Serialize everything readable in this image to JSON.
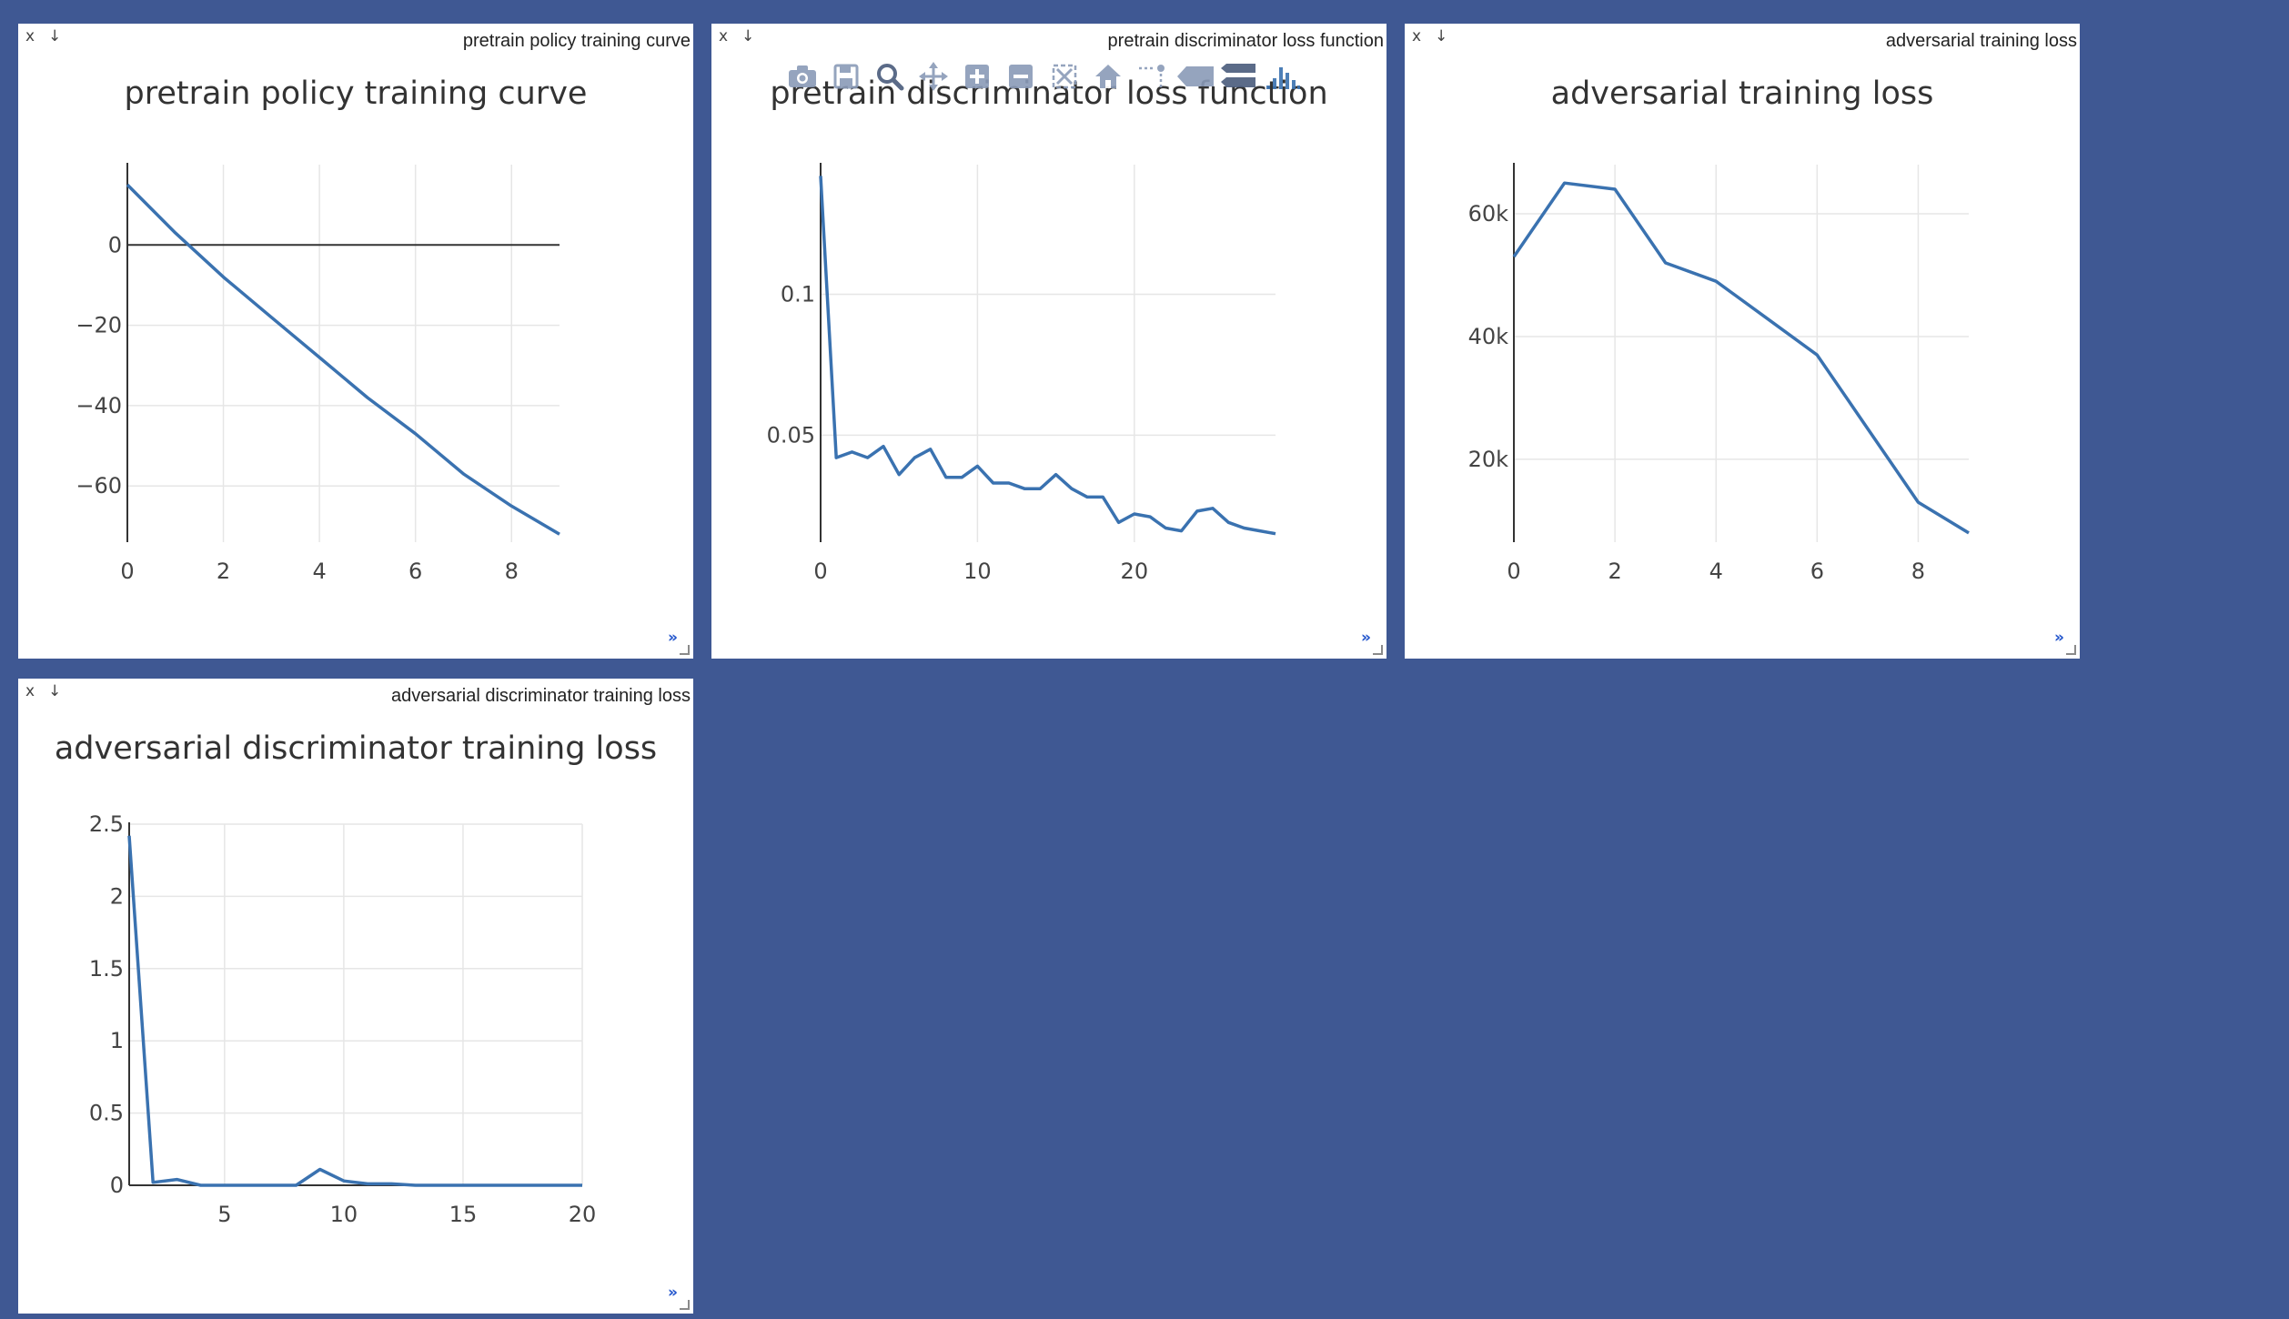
{
  "panes": [
    {
      "id": "policy",
      "window_title": "pretrain policy training curve",
      "close_label": "x",
      "download_label": "↓",
      "expand_label": "»",
      "chart_data": {
        "type": "line",
        "title": "pretrain policy training curve",
        "x": [
          0,
          1,
          2,
          3,
          4,
          5,
          6,
          7,
          8,
          9
        ],
        "y": [
          15,
          3,
          -8,
          -18,
          -28,
          -38,
          -47,
          -57,
          -65,
          -72
        ],
        "xlim": [
          0,
          9
        ],
        "ylim": [
          -74,
          20
        ],
        "xticks": [
          0,
          2,
          4,
          6,
          8
        ],
        "xtick_labels": [
          "0",
          "2",
          "4",
          "6",
          "8"
        ],
        "yticks": [
          0,
          -20,
          -40,
          -60
        ],
        "ytick_labels": [
          "0",
          "−20",
          "−40",
          "−60"
        ],
        "zero_line": true
      }
    },
    {
      "id": "pre-disc",
      "window_title": "pretrain discriminator loss function",
      "close_label": "x",
      "download_label": "↓",
      "expand_label": "»",
      "chart_data": {
        "type": "line",
        "title": "pretrain discriminator loss function",
        "x": [
          0,
          1,
          2,
          3,
          4,
          5,
          6,
          7,
          8,
          9,
          10,
          11,
          12,
          13,
          14,
          15,
          16,
          17,
          18,
          19,
          20,
          21,
          22,
          23,
          24,
          25,
          26,
          27,
          28,
          29
        ],
        "y": [
          0.142,
          0.042,
          0.044,
          0.042,
          0.046,
          0.036,
          0.042,
          0.045,
          0.035,
          0.035,
          0.039,
          0.033,
          0.033,
          0.031,
          0.031,
          0.036,
          0.031,
          0.028,
          0.028,
          0.019,
          0.022,
          0.021,
          0.017,
          0.016,
          0.023,
          0.024,
          0.019,
          0.017,
          0.016,
          0.015
        ],
        "xlim": [
          0,
          29
        ],
        "ylim": [
          0.012,
          0.146
        ],
        "xticks": [
          0,
          10,
          20
        ],
        "xtick_labels": [
          "0",
          "10",
          "20"
        ],
        "yticks": [
          0.05,
          0.1
        ],
        "ytick_labels": [
          "0.05",
          "0.1"
        ],
        "zero_line": false
      }
    },
    {
      "id": "adv",
      "window_title": "adversarial training loss",
      "close_label": "x",
      "download_label": "↓",
      "expand_label": "»",
      "chart_data": {
        "type": "line",
        "title": "adversarial training loss",
        "x": [
          0,
          1,
          2,
          3,
          4,
          5,
          6,
          7,
          8,
          9
        ],
        "y": [
          53000,
          65000,
          64000,
          52000,
          49000,
          43000,
          37000,
          25000,
          13000,
          8000
        ],
        "xlim": [
          0,
          9
        ],
        "ylim": [
          6500,
          68000
        ],
        "xticks": [
          0,
          2,
          4,
          6,
          8
        ],
        "xtick_labels": [
          "0",
          "2",
          "4",
          "6",
          "8"
        ],
        "yticks": [
          20000,
          40000,
          60000
        ],
        "ytick_labels": [
          "20k",
          "40k",
          "60k"
        ],
        "zero_line": false
      }
    },
    {
      "id": "adv-disc",
      "window_title": "adversarial discriminator training loss",
      "close_label": "x",
      "download_label": "↓",
      "expand_label": "»",
      "chart_data": {
        "type": "line",
        "title": "adversarial discriminator training loss",
        "x": [
          1,
          2,
          3,
          4,
          5,
          6,
          7,
          8,
          9,
          10,
          11,
          12,
          13,
          14,
          15,
          16,
          17,
          18,
          19,
          20
        ],
        "y": [
          2.42,
          0.02,
          0.04,
          0.0,
          0.0,
          0.0,
          0.0,
          0.0,
          0.11,
          0.03,
          0.01,
          0.01,
          0.0,
          0.0,
          0.0,
          0.0,
          0.0,
          0.0,
          0.0,
          0.0
        ],
        "xlim": [
          1,
          20
        ],
        "ylim": [
          0,
          2.5
        ],
        "xticks": [
          5,
          10,
          15,
          20
        ],
        "xtick_labels": [
          "5",
          "10",
          "15",
          "20"
        ],
        "yticks": [
          0,
          0.5,
          1,
          1.5,
          2,
          2.5
        ],
        "ytick_labels": [
          "0",
          "0.5",
          "1",
          "1.5",
          "2",
          "2.5"
        ],
        "zero_line": true
      }
    }
  ],
  "modebar": {
    "buttons": [
      {
        "icon": "camera-icon"
      },
      {
        "icon": "save-icon"
      },
      {
        "icon": "zoom-icon"
      },
      {
        "icon": "pan-icon"
      },
      {
        "icon": "zoom-in-icon"
      },
      {
        "icon": "zoom-out-icon"
      },
      {
        "icon": "autoscale-icon"
      },
      {
        "icon": "reset-axes-icon"
      },
      {
        "icon": "spikelines-icon"
      },
      {
        "icon": "hover-closest-icon"
      },
      {
        "icon": "hover-compare-icon"
      },
      {
        "icon": "plotly-logo-icon"
      }
    ]
  },
  "colors": {
    "background": "#3f5893",
    "pane": "#ffffff",
    "series": "#3a72b0",
    "expand": "#2255cc"
  }
}
